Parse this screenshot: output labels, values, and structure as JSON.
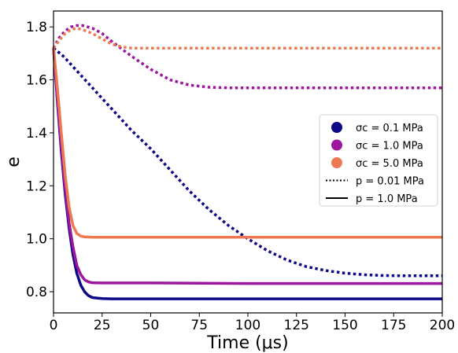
{
  "chart_data": {
    "type": "line",
    "xlabel": "Time (μs)",
    "ylabel": "e",
    "xlim": [
      0,
      200
    ],
    "ylim": [
      0.72,
      1.86
    ],
    "xticks": [
      0,
      25,
      50,
      75,
      100,
      125,
      150,
      175,
      200
    ],
    "yticks": [
      0.8,
      1.0,
      1.2,
      1.4,
      1.6,
      1.8
    ],
    "grid": false,
    "legend": {
      "placement": "center-right",
      "entries": [
        {
          "label": "σc = 0.1 MPa",
          "marker": "circle",
          "color": "#0d0887"
        },
        {
          "label": "σc = 1.0 MPa",
          "marker": "circle",
          "color": "#9c179e"
        },
        {
          "label": "σc = 5.0 MPa",
          "marker": "circle",
          "color": "#ed7953"
        },
        {
          "label": "p = 0.01 MPa",
          "linestyle": "dotted",
          "color": "#000000"
        },
        {
          "label": "p = 1.0 MPa",
          "linestyle": "solid",
          "color": "#000000"
        }
      ]
    },
    "series": [
      {
        "color": "#0d0887",
        "linestyle": "dotted",
        "x": [
          0,
          5,
          10,
          20,
          30,
          40,
          50,
          60,
          70,
          80,
          90,
          100,
          110,
          120,
          130,
          140,
          150,
          160,
          170,
          180,
          190,
          200
        ],
        "y": [
          1.72,
          1.69,
          1.65,
          1.57,
          1.49,
          1.41,
          1.34,
          1.26,
          1.18,
          1.11,
          1.05,
          1.0,
          0.955,
          0.92,
          0.895,
          0.88,
          0.87,
          0.864,
          0.861,
          0.86,
          0.86,
          0.86
        ]
      },
      {
        "color": "#9c179e",
        "linestyle": "dotted",
        "x": [
          0,
          3,
          6,
          9,
          12,
          15,
          20,
          25,
          30,
          40,
          50,
          60,
          70,
          80,
          90,
          100,
          120,
          150,
          175,
          200
        ],
        "y": [
          1.72,
          1.76,
          1.785,
          1.8,
          1.805,
          1.805,
          1.795,
          1.775,
          1.745,
          1.69,
          1.64,
          1.6,
          1.58,
          1.572,
          1.57,
          1.57,
          1.57,
          1.57,
          1.57,
          1.57
        ]
      },
      {
        "color": "#ed7953",
        "linestyle": "dotted",
        "x": [
          0,
          3,
          6,
          9,
          12,
          15,
          20,
          25,
          30,
          35,
          40,
          50,
          75,
          100,
          125,
          150,
          175,
          200
        ],
        "y": [
          1.72,
          1.75,
          1.775,
          1.79,
          1.795,
          1.79,
          1.775,
          1.755,
          1.735,
          1.725,
          1.72,
          1.72,
          1.72,
          1.72,
          1.72,
          1.72,
          1.72,
          1.72
        ]
      },
      {
        "color": "#0d0887",
        "linestyle": "solid",
        "x": [
          0,
          2,
          4,
          6,
          8,
          10,
          12,
          14,
          16,
          18,
          20,
          25,
          30,
          50,
          100,
          150,
          200
        ],
        "y": [
          1.72,
          1.52,
          1.33,
          1.17,
          1.04,
          0.94,
          0.87,
          0.825,
          0.8,
          0.785,
          0.778,
          0.774,
          0.773,
          0.773,
          0.773,
          0.773,
          0.773
        ]
      },
      {
        "color": "#9c179e",
        "linestyle": "solid",
        "x": [
          0,
          2,
          4,
          6,
          8,
          10,
          12,
          14,
          16,
          18,
          20,
          25,
          30,
          50,
          100,
          150,
          200
        ],
        "y": [
          1.72,
          1.53,
          1.35,
          1.19,
          1.06,
          0.97,
          0.9,
          0.865,
          0.845,
          0.837,
          0.834,
          0.833,
          0.833,
          0.833,
          0.831,
          0.831,
          0.831
        ]
      },
      {
        "color": "#ed7953",
        "linestyle": "solid",
        "x": [
          0,
          2,
          4,
          6,
          8,
          10,
          12,
          14,
          16,
          20,
          25,
          50,
          100,
          150,
          200
        ],
        "y": [
          1.72,
          1.57,
          1.4,
          1.24,
          1.12,
          1.05,
          1.02,
          1.01,
          1.007,
          1.006,
          1.006,
          1.006,
          1.006,
          1.006,
          1.006
        ]
      }
    ]
  }
}
